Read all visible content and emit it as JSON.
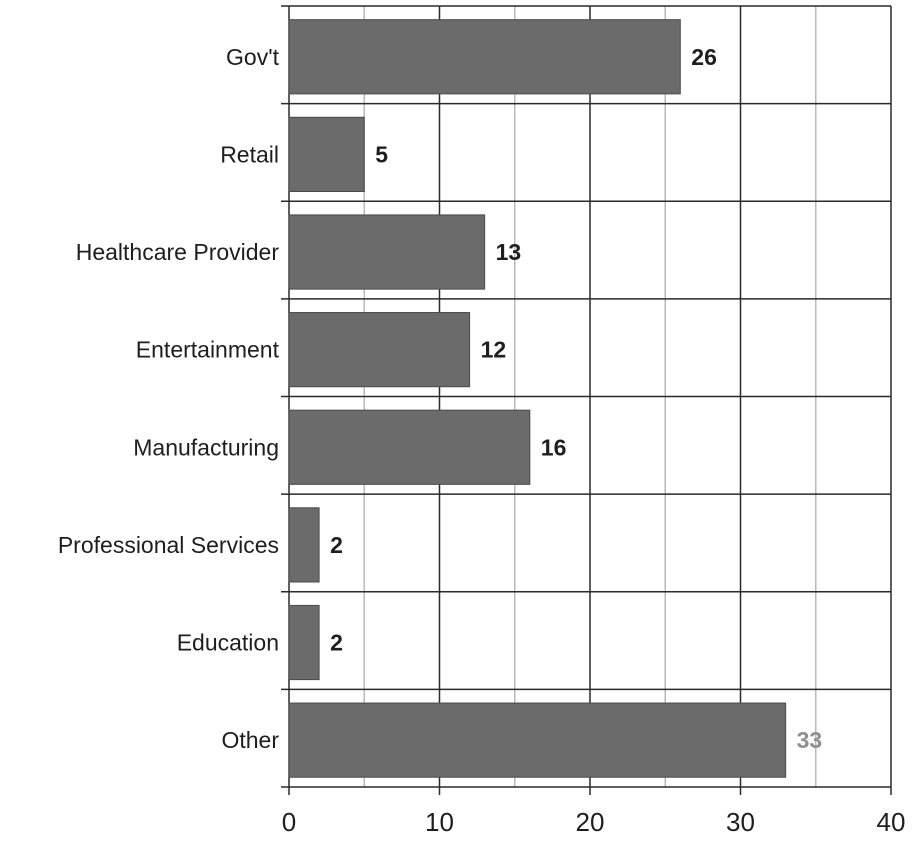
{
  "chart_data": {
    "type": "bar",
    "orientation": "horizontal",
    "categories": [
      "Gov't",
      "Retail",
      "Healthcare Provider",
      "Entertainment",
      "Manufacturing",
      "Professional Services",
      "Education",
      "Other"
    ],
    "values": [
      26,
      5,
      13,
      12,
      16,
      2,
      2,
      33
    ],
    "data_labels": [
      "26",
      "5",
      "13",
      "12",
      "16",
      "2",
      "2",
      "33"
    ],
    "xlim": [
      0,
      40
    ],
    "xticks": [
      0,
      10,
      20,
      30,
      40
    ],
    "xtick_labels": [
      "0",
      "10",
      "20",
      "30",
      "40"
    ],
    "title": "",
    "xlabel": "",
    "ylabel": "",
    "grid": true,
    "legend": "none",
    "colors": {
      "bar": "#6b6b6b",
      "bar_edge": "#4a4a4a",
      "grid_major": "#2a2a2a",
      "grid_minor": "#b9b9b9",
      "text": "#1e1e1e",
      "last_label": "#8f8f8f"
    }
  }
}
